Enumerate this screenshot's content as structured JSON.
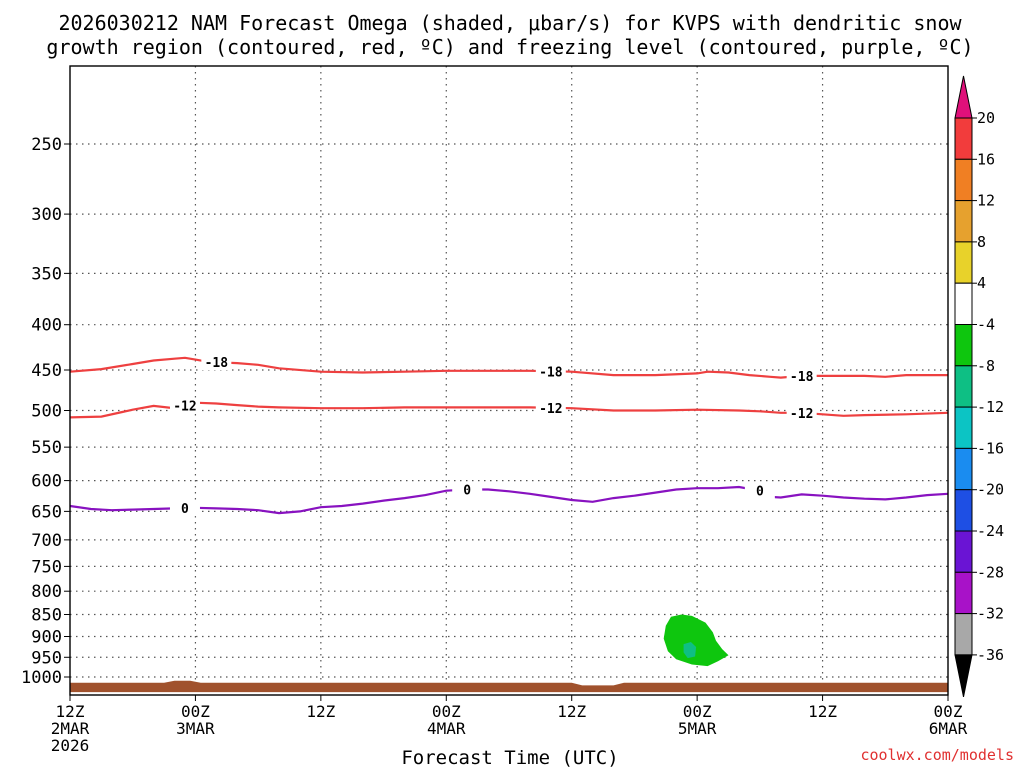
{
  "chart_data": {
    "type": "time-height-contour",
    "title_line1": "2026030212 NAM Forecast Omega (shaded, μbar/s) for KVPS with dendritic snow",
    "title_line2": "growth region (contoured, red, ºC) and freezing level (contoured, purple, ºC)",
    "xlabel": "Forecast Time (UTC)",
    "credit": "coolwx.com/models",
    "x_range_hours": [
      0,
      84
    ],
    "x_ticks": [
      {
        "hour": 0,
        "line1": "12Z",
        "line2": "2MAR",
        "line3": "2026"
      },
      {
        "hour": 12,
        "line1": "00Z",
        "line2": "3MAR",
        "line3": ""
      },
      {
        "hour": 24,
        "line1": "12Z",
        "line2": "",
        "line3": ""
      },
      {
        "hour": 36,
        "line1": "00Z",
        "line2": "4MAR",
        "line3": ""
      },
      {
        "hour": 48,
        "line1": "12Z",
        "line2": "",
        "line3": ""
      },
      {
        "hour": 60,
        "line1": "00Z",
        "line2": "5MAR",
        "line3": ""
      },
      {
        "hour": 72,
        "line1": "12Z",
        "line2": "",
        "line3": ""
      },
      {
        "hour": 84,
        "line1": "00Z",
        "line2": "6MAR",
        "line3": ""
      }
    ],
    "y_ticks_hpa": [
      "250",
      "300",
      "350",
      "400",
      "450",
      "500",
      "550",
      "600",
      "650",
      "700",
      "750",
      "800",
      "850",
      "900",
      "950",
      "1000"
    ],
    "y_range_hpa": [
      200,
      1030
    ],
    "colorbar": {
      "labels": [
        "20",
        "16",
        "12",
        "8",
        "4",
        "-4",
        "-8",
        "-12",
        "-16",
        "-20",
        "-24",
        "-28",
        "-32",
        "-36"
      ],
      "colors": [
        "#f23c3c",
        "#f07f23",
        "#e6a12e",
        "#e8d22a",
        "#ffffff",
        "#0ec60e",
        "#0ebf84",
        "#0cc4c4",
        "#1a8cf0",
        "#1e4fe4",
        "#6a14d4",
        "#a812c8",
        "#a8a8a8"
      ],
      "top_arrow_color": "#e0107a",
      "bottom_arrow_color": "#000000"
    },
    "series": [
      {
        "name": "-18",
        "color": "#ee4040",
        "x": [
          0,
          3,
          6,
          8,
          10,
          11,
          12,
          13,
          14,
          16,
          18,
          20,
          24,
          28,
          32,
          36,
          40,
          44,
          48,
          52,
          56,
          60,
          61,
          63,
          65,
          67,
          68,
          70,
          72,
          76,
          78,
          80,
          84
        ],
        "y": [
          452,
          449,
          443,
          439,
          437,
          436,
          438,
          440,
          441,
          442,
          444,
          448,
          452,
          453,
          452,
          451,
          451,
          451,
          452,
          456,
          456,
          454,
          452,
          453,
          456,
          458,
          459,
          457,
          457,
          457,
          458,
          456,
          456
        ]
      },
      {
        "name": "-12",
        "color": "#ee4040",
        "x": [
          0,
          3,
          5,
          6,
          8,
          10,
          12,
          14,
          16,
          18,
          20,
          24,
          28,
          32,
          36,
          40,
          44,
          48,
          52,
          56,
          60,
          64,
          66,
          68,
          70,
          72,
          74,
          76,
          80,
          84
        ],
        "y": [
          509,
          508,
          502,
          499,
          494,
          497,
          490,
          491,
          493,
          495,
          496,
          497,
          497,
          496,
          496,
          496,
          496,
          497,
          500,
          500,
          499,
          500,
          501,
          503,
          503,
          505,
          507,
          506,
          505,
          503
        ]
      },
      {
        "name": "0",
        "color": "#8812c0",
        "x": [
          0,
          2,
          4,
          6,
          8,
          10,
          12,
          14,
          16,
          18,
          20,
          22,
          24,
          26,
          28,
          30,
          32,
          34,
          36,
          38,
          40,
          42,
          44,
          46,
          48,
          50,
          52,
          54,
          56,
          58,
          60,
          62,
          64,
          66,
          67,
          68,
          70,
          72,
          74,
          76,
          78,
          80,
          82,
          84
        ],
        "y": [
          641,
          646,
          648,
          647,
          646,
          645,
          644,
          645,
          646,
          648,
          653,
          650,
          643,
          641,
          637,
          632,
          628,
          623,
          616,
          614,
          614,
          617,
          621,
          626,
          631,
          634,
          628,
          624,
          619,
          614,
          612,
          612,
          610,
          616,
          626,
          627,
          622,
          624,
          627,
          629,
          630,
          627,
          623,
          621
        ]
      }
    ],
    "contour_label_positions_hours": {
      "-18": [
        14,
        46,
        70
      ],
      "-12": [
        11,
        46,
        70
      ],
      "0": [
        11,
        38,
        66
      ]
    },
    "omega_shading": [
      {
        "category": "-8 to -4",
        "color": "#0ec60e",
        "center_hour": 59.5,
        "center_hpa": 920
      },
      {
        "category": "-12 to -8",
        "color": "#0ebf84",
        "center_hour": 59.0,
        "center_hpa": 935
      }
    ],
    "terrain_color": "#a0522d"
  }
}
